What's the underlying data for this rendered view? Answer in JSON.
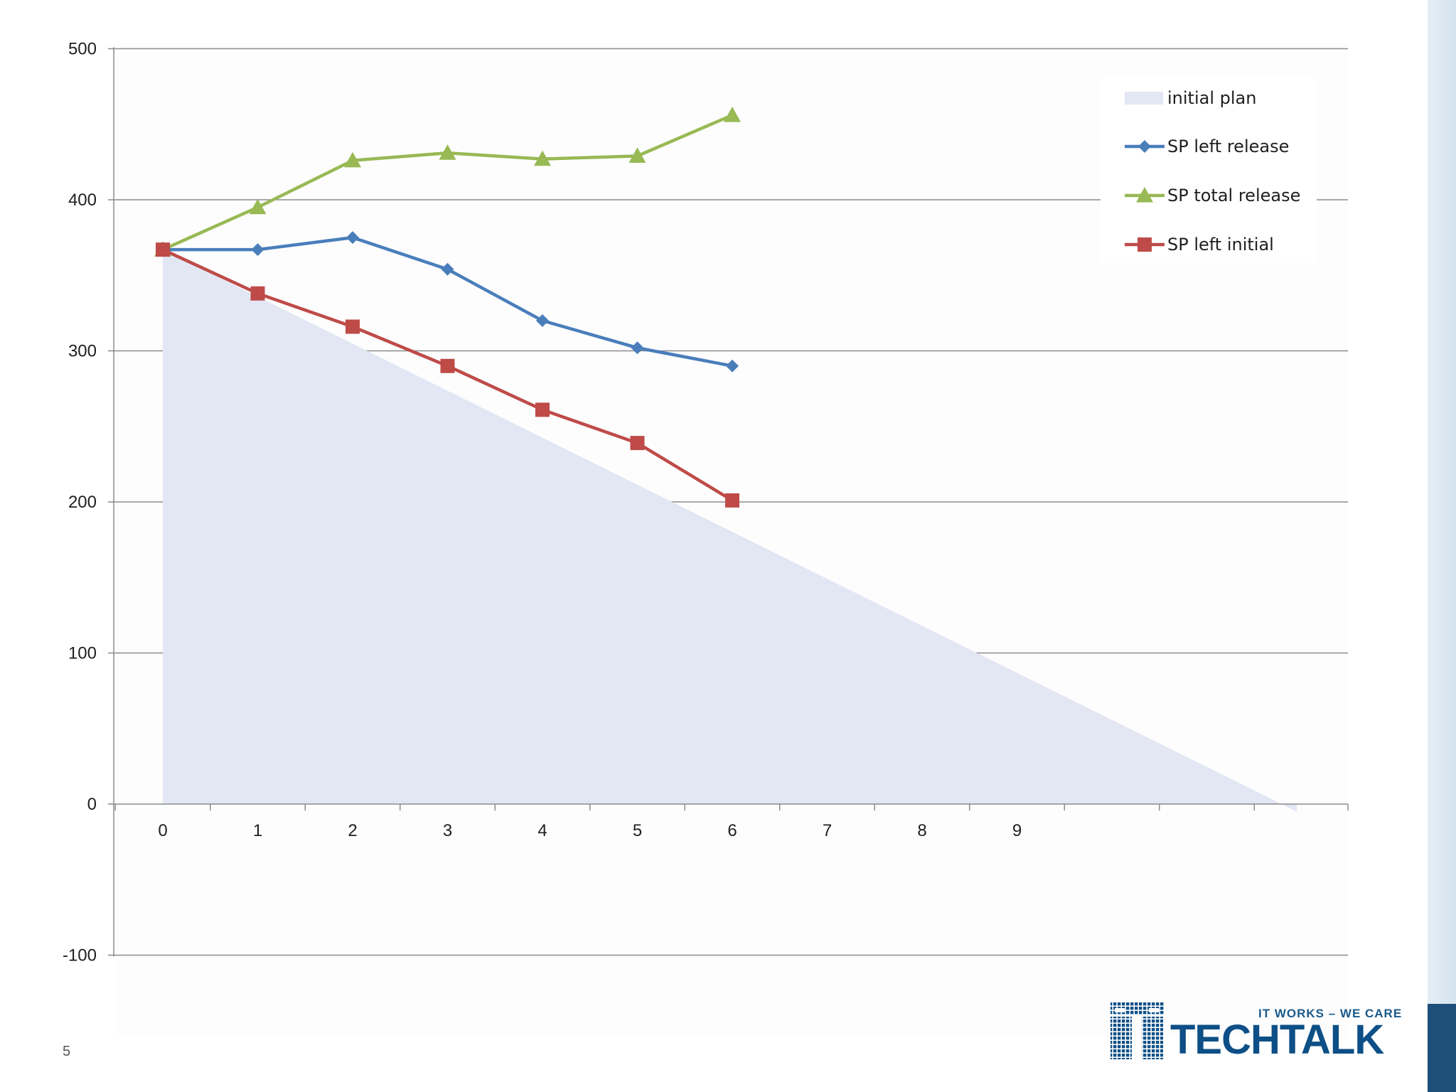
{
  "slide": {
    "page_number": "5"
  },
  "logo": {
    "tagline": "IT WORKS – WE CARE",
    "name": "TECHTALK"
  },
  "colors": {
    "initial_plan": "#e3e6f3",
    "sp_left_release": "#4a7ebb",
    "sp_total_release": "#98b954",
    "sp_left_initial": "#be4b48",
    "gridline": "#8c8c8c",
    "logo_blue": "#0d4f86",
    "side_tab": "#1e4f7a"
  },
  "chart_data": {
    "type": "line",
    "title": "",
    "xlabel": "",
    "ylabel": "",
    "grid": true,
    "legend_position": "top-right",
    "x_categories": [
      "0",
      "1",
      "2",
      "3",
      "4",
      "5",
      "6",
      "7",
      "8",
      "9",
      "",
      "",
      ""
    ],
    "ylim": [
      -100,
      500
    ],
    "y_ticks": [
      "-100",
      "0",
      "100",
      "200",
      "300",
      "400",
      "500"
    ],
    "y_tick_values": [
      -100,
      0,
      100,
      200,
      300,
      400,
      500
    ],
    "area": {
      "name": "initial plan",
      "x": [
        0,
        11.95,
        11.95
      ],
      "y": [
        367,
        -5,
        0
      ],
      "start_x": 0,
      "start_y": 367,
      "end_x": 11.95,
      "end_y": -5
    },
    "series": [
      {
        "name": "SP left release",
        "marker": "diamond",
        "x": [
          0,
          1,
          2,
          3,
          4,
          5,
          6
        ],
        "values": [
          367,
          367,
          375,
          354,
          320,
          302,
          290
        ]
      },
      {
        "name": "SP total release",
        "marker": "triangle",
        "x": [
          0,
          1,
          2,
          3,
          4,
          5,
          6
        ],
        "values": [
          367,
          395,
          426,
          431,
          427,
          429,
          456
        ]
      },
      {
        "name": "SP left initial",
        "marker": "square",
        "x": [
          0,
          1,
          2,
          3,
          4,
          5,
          6
        ],
        "values": [
          367,
          338,
          316,
          290,
          261,
          239,
          201
        ]
      }
    ],
    "legend": [
      "initial plan",
      "SP left release",
      "SP total release",
      "SP left initial"
    ]
  }
}
